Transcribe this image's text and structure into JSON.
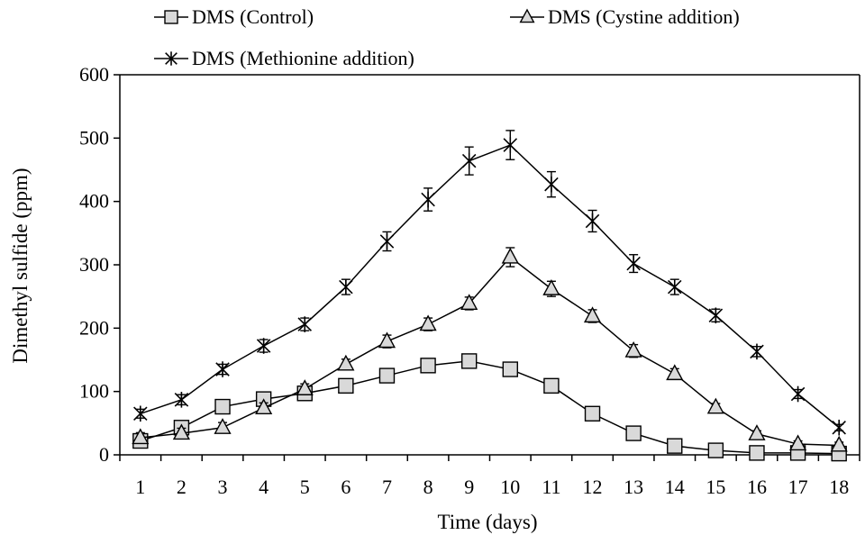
{
  "chart_data": {
    "type": "line",
    "title": "",
    "xlabel": "Time (days)",
    "ylabel": "Dimethyl sulfide (ppm)",
    "categories": [
      "1",
      "2",
      "3",
      "4",
      "5",
      "6",
      "7",
      "8",
      "9",
      "10",
      "11",
      "12",
      "13",
      "14",
      "15",
      "16",
      "17",
      "18"
    ],
    "ylim": [
      0,
      600
    ],
    "yticks": [
      0,
      100,
      200,
      300,
      400,
      500,
      600
    ],
    "grid": false,
    "legend_position": "top",
    "series": [
      {
        "name": "DMS (Control)",
        "marker": "square",
        "values": [
          22,
          43,
          76,
          88,
          97,
          109,
          125,
          141,
          148,
          135,
          109,
          65,
          34,
          14,
          7,
          3,
          3,
          2
        ],
        "errors": [
          10,
          10,
          10,
          10,
          10,
          10,
          10,
          10,
          10,
          10,
          10,
          10,
          10,
          8,
          5,
          5,
          5,
          5
        ]
      },
      {
        "name": "DMS (Cystine addition)",
        "marker": "triangle",
        "values": [
          27,
          34,
          43,
          74,
          104,
          143,
          179,
          206,
          239,
          312,
          262,
          219,
          164,
          128,
          75,
          33,
          17,
          15
        ],
        "errors": [
          8,
          8,
          8,
          8,
          8,
          8,
          10,
          10,
          10,
          15,
          12,
          10,
          10,
          8,
          6,
          5,
          5,
          5
        ]
      },
      {
        "name": "DMS (Methionine addition)",
        "marker": "asterisk",
        "values": [
          65,
          87,
          135,
          172,
          206,
          265,
          337,
          403,
          464,
          489,
          427,
          369,
          302,
          265,
          220,
          163,
          96,
          43
        ],
        "errors": [
          7,
          8,
          8,
          10,
          10,
          12,
          15,
          18,
          22,
          23,
          20,
          17,
          14,
          12,
          10,
          8,
          7,
          5
        ]
      }
    ]
  },
  "colors": {
    "line": "#000000",
    "marker_fill": "#d9d9d9",
    "background": "#ffffff"
  }
}
